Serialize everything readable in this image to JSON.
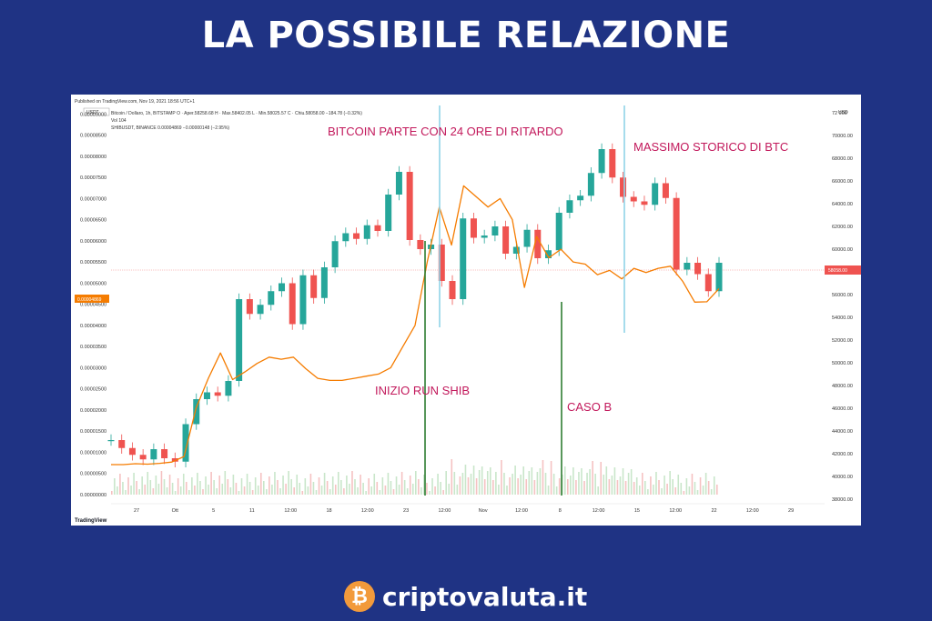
{
  "page": {
    "title": "LA POSSIBILE RELAZIONE"
  },
  "brand": {
    "name": "criptovaluta.it",
    "logo_icon": "bitcoin-coin-icon",
    "logo_glyph": "₿",
    "logo_color": "#f29a3b"
  },
  "colors": {
    "background": "#1f3384",
    "btc_up": "#26a69a",
    "btc_down": "#ef5350",
    "shib_line": "#f57c00",
    "marker_green": "#2e7d32",
    "marker_blue": "#8fd3e8",
    "annotation": "#c2185b"
  },
  "chart_data": {
    "type": "line",
    "header": {
      "published": "Published on TradingView.com, Nov 19, 2021 18:56 UTC+1",
      "btc_line": "Bitcoin / Dollaro, 1h, BITSTAMP  O · Aper.58258.68  H · Max.58402.05  L · Min.58025.57  C · Chiu.58058.00  −184.78 (−0.32%)",
      "vol_line": "Vol  104",
      "shib_line": "SHIBUSDT, BINANCE  0.00004869  −0.00000148 (−2.95%)"
    },
    "currency_left": "USDT",
    "currency_right": "USD",
    "left_axis_ticks": [
      "0.00009000",
      "0.00008500",
      "0.00008000",
      "0.00007500",
      "0.00007000",
      "0.00006500",
      "0.00006000",
      "0.00005500",
      "0.00005000",
      "0.00004500",
      "0.00004000",
      "0.00003500",
      "0.00003000",
      "0.00002500",
      "0.00002000",
      "0.00001500",
      "0.00001000",
      "0.00000500",
      "0.00000000"
    ],
    "right_axis_ticks": [
      "72 000",
      "70000.00",
      "68000.00",
      "66000.00",
      "64000.00",
      "62000.00",
      "60000.00",
      "58000.00",
      "56000.00",
      "54000.00",
      "52000.00",
      "50000.00",
      "48000.00",
      "46000.00",
      "44000.00",
      "42000.00",
      "40000.00",
      "38000.00"
    ],
    "x_ticks": [
      "27",
      "Ott",
      "5",
      "11",
      "12:00",
      "18",
      "12:00",
      "23",
      "12:00",
      "Nov",
      "12:00",
      "8",
      "12:00",
      "15",
      "12:00",
      "22",
      "12:00",
      "29"
    ],
    "current_price_label": "58058.00",
    "current_shib_label": "0.00004869",
    "footer": "TradingView",
    "btc_series": [
      43200,
      42500,
      41900,
      41500,
      42400,
      41600,
      41300,
      44600,
      46800,
      47400,
      47100,
      48400,
      55600,
      54300,
      55100,
      56300,
      57000,
      53400,
      57700,
      55700,
      58400,
      60700,
      61400,
      60900,
      62100,
      61600,
      64800,
      66800,
      60800,
      60000,
      60400,
      57200,
      55600,
      62700,
      61000,
      61200,
      62000,
      59600,
      60200,
      61700,
      59200,
      59900,
      63200,
      64300,
      64700,
      66700,
      68800,
      66300,
      64600,
      64200,
      63900,
      65800,
      64500,
      58200,
      58800,
      57800,
      56300,
      58800
    ],
    "shib_series": [
      7.1e-06,
      7.1e-06,
      7.3e-06,
      7.2e-06,
      7.4e-06,
      7.7e-06,
      9e-06,
      2.05e-05,
      2.75e-05,
      3.35e-05,
      2.72e-05,
      2.9e-05,
      3.1e-05,
      3.25e-05,
      3.2e-05,
      3.25e-05,
      2.98e-05,
      2.75e-05,
      2.7e-05,
      2.7e-05,
      2.75e-05,
      2.8e-05,
      2.85e-05,
      3e-05,
      3.5e-05,
      4e-05,
      5.5e-05,
      6.8e-05,
      5.9e-05,
      7.3e-05,
      7.05e-05,
      6.8e-05,
      7e-05,
      6.5e-05,
      4.9e-05,
      6.1e-05,
      5.6e-05,
      5.8e-05,
      5.5e-05,
      5.45e-05,
      5.2e-05,
      5.3e-05,
      5.1e-05,
      5.35e-05,
      5.25e-05,
      5.35e-05,
      5.4e-05,
      5.05e-05,
      4.55e-05,
      4.56e-05,
      4.87e-05
    ],
    "annotations": [
      "BITCOIN PARTE CON 24 ORE DI RITARDO",
      "MASSIMO STORICO DI BTC",
      "INIZIO RUN SHIB",
      "CASO B"
    ]
  }
}
